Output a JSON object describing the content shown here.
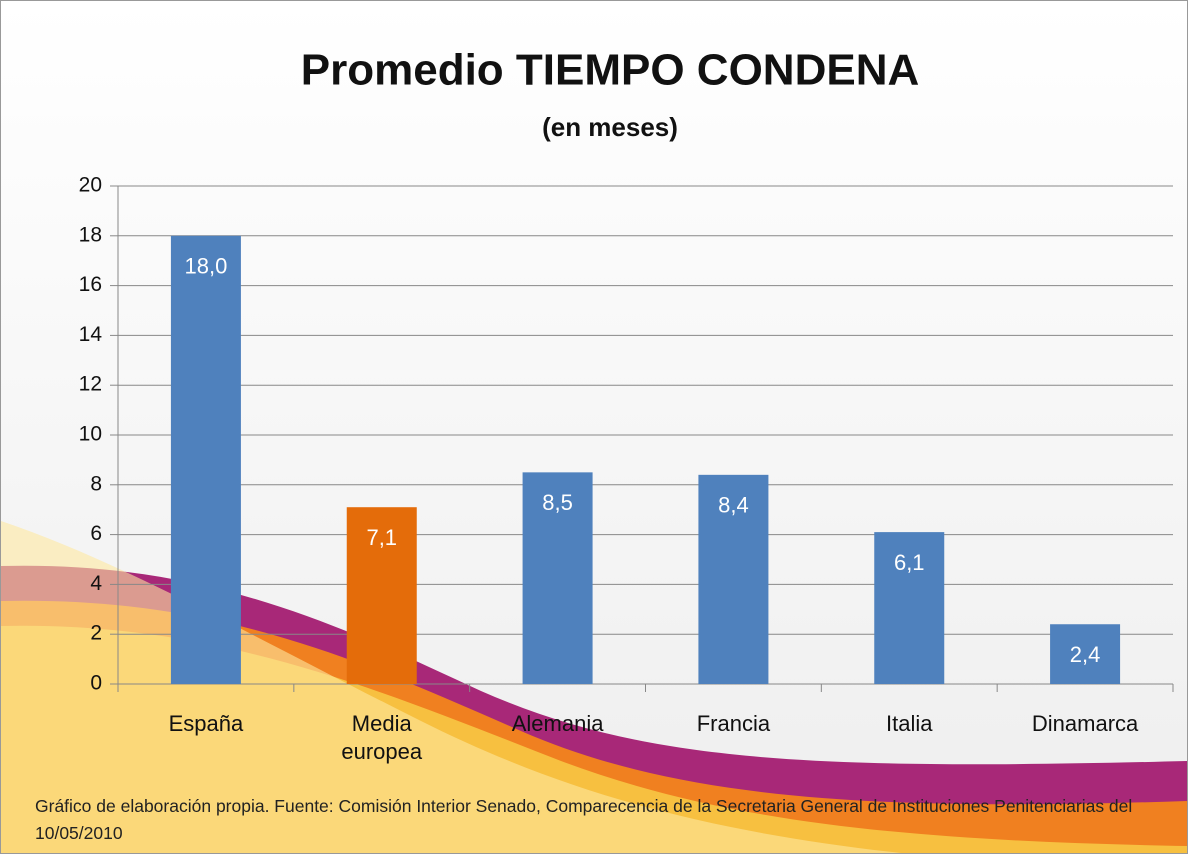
{
  "chart_data": {
    "type": "bar",
    "title": "Promedio TIEMPO CONDENA",
    "subtitle": "(en meses)",
    "categories": [
      "España",
      "Media europea",
      "Alemania",
      "Francia",
      "Italia",
      "Dinamarca"
    ],
    "values": [
      18.0,
      7.1,
      8.5,
      8.4,
      6.1,
      2.4
    ],
    "value_labels": [
      "18,0",
      "7,1",
      "8,5",
      "8,4",
      "6,1",
      "2,4"
    ],
    "colors": [
      "#4f81bd",
      "#e46c0a",
      "#4f81bd",
      "#4f81bd",
      "#4f81bd",
      "#4f81bd"
    ],
    "ylim": [
      0,
      20
    ],
    "yticks": [
      0,
      2,
      4,
      6,
      8,
      10,
      12,
      14,
      16,
      18,
      20
    ],
    "grid": true,
    "note": "Gráfico de elaboración propia. Fuente: Comisión Interior Senado, Comparecencia de la Secretaria General de Instituciones Penitenciarias del 10/05/2010"
  }
}
